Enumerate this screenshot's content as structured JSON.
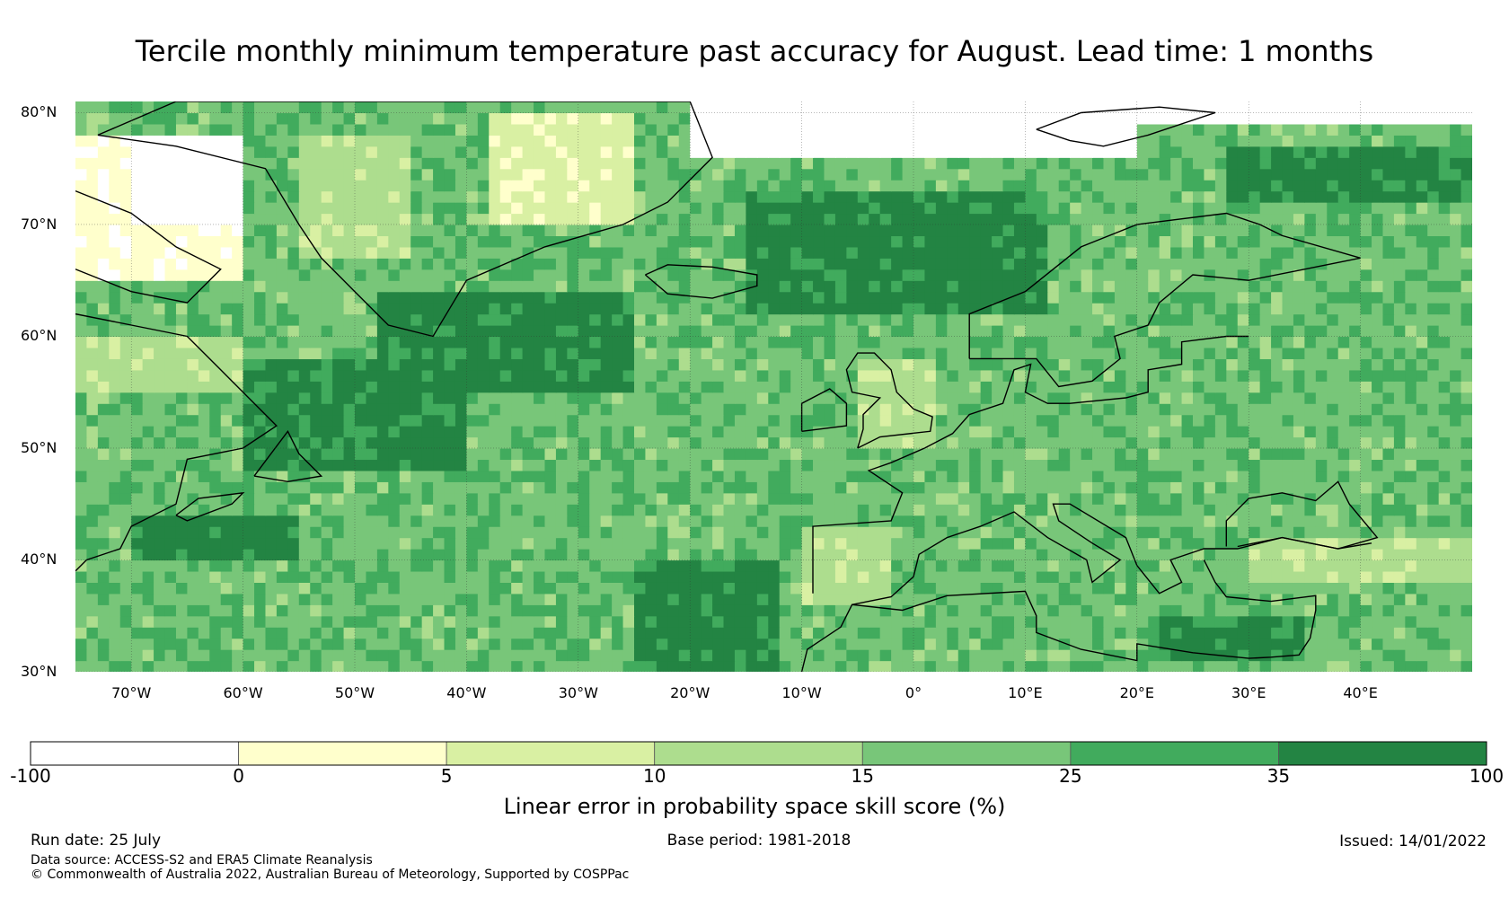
{
  "title": "Tercile monthly minimum temperature past accuracy for August. Lead time: 1 months",
  "map": {
    "lat_range": [
      30,
      81
    ],
    "lon_range": [
      -75,
      50
    ],
    "lat_ticks": [
      {
        "value": 80,
        "label": "80°N"
      },
      {
        "value": 70,
        "label": "70°N"
      },
      {
        "value": 60,
        "label": "60°N"
      },
      {
        "value": 50,
        "label": "50°N"
      },
      {
        "value": 40,
        "label": "40°N"
      },
      {
        "value": 30,
        "label": "30°N"
      }
    ],
    "lon_ticks": [
      {
        "value": -70,
        "label": "70°W"
      },
      {
        "value": -60,
        "label": "60°W"
      },
      {
        "value": -50,
        "label": "50°W"
      },
      {
        "value": -40,
        "label": "40°W"
      },
      {
        "value": -30,
        "label": "30°W"
      },
      {
        "value": -20,
        "label": "20°W"
      },
      {
        "value": -10,
        "label": "10°W"
      },
      {
        "value": 0,
        "label": "0°"
      },
      {
        "value": 10,
        "label": "10°E"
      },
      {
        "value": 20,
        "label": "20°E"
      },
      {
        "value": 30,
        "label": "30°E"
      },
      {
        "value": 40,
        "label": "40°E"
      }
    ],
    "regions": [
      {
        "lon": [
          -48,
          -25
        ],
        "lat": [
          55,
          64
        ],
        "level": 6
      },
      {
        "lon": [
          -60,
          -40
        ],
        "lat": [
          48,
          58
        ],
        "level": 6
      },
      {
        "lon": [
          -15,
          12
        ],
        "lat": [
          62,
          73
        ],
        "level": 6
      },
      {
        "lon": [
          -25,
          -12
        ],
        "lat": [
          30,
          40
        ],
        "level": 6
      },
      {
        "lon": [
          28,
          50
        ],
        "lat": [
          72,
          77
        ],
        "level": 6
      },
      {
        "lon": [
          22,
          35
        ],
        "lat": [
          31,
          35
        ],
        "level": 6
      },
      {
        "lon": [
          -70,
          -55
        ],
        "lat": [
          40,
          44
        ],
        "level": 6
      },
      {
        "lon": [
          -75,
          -60
        ],
        "lat": [
          55,
          60
        ],
        "level": 3
      },
      {
        "lon": [
          -55,
          -45
        ],
        "lat": [
          67,
          78
        ],
        "level": 3
      },
      {
        "lon": [
          -38,
          -25
        ],
        "lat": [
          70,
          80
        ],
        "level": 2
      },
      {
        "lon": [
          -5,
          2
        ],
        "lat": [
          50,
          58
        ],
        "level": 3
      },
      {
        "lon": [
          -10,
          -2
        ],
        "lat": [
          36,
          43
        ],
        "level": 3
      },
      {
        "lon": [
          -75,
          -60
        ],
        "lat": [
          65,
          78
        ],
        "level": 1
      },
      {
        "lon": [
          -70,
          -60
        ],
        "lat": [
          70,
          78
        ],
        "level": 0
      },
      {
        "lon": [
          -20,
          20
        ],
        "lat": [
          76,
          81
        ],
        "level": 0
      },
      {
        "lon": [
          20,
          50
        ],
        "lat": [
          79,
          81
        ],
        "level": 0
      },
      {
        "lon": [
          41,
          45
        ],
        "lat": [
          39,
          41
        ],
        "level": 0
      },
      {
        "lon": [
          30,
          50
        ],
        "lat": [
          38,
          42
        ],
        "level": 3
      }
    ]
  },
  "colorbar": {
    "colors": [
      "#ffffff",
      "#ffffcc",
      "#d9f0a3",
      "#addd8e",
      "#78c679",
      "#41ab5d",
      "#238443"
    ],
    "ticks": [
      "-100",
      "0",
      "5",
      "10",
      "15",
      "25",
      "35",
      "100"
    ],
    "label": "Linear error in probability space skill score (%)"
  },
  "footer": {
    "run_date": "Run date: 25 July",
    "base_period": "Base period: 1981-2018",
    "issued": "Issued: 14/01/2022",
    "data_source": "Data source: ACCESS-S2 and ERA5 Climate Reanalysis",
    "copyright": "© Commonwealth of Australia 2022, Australian Bureau of Meteorology, Supported by COSPPac"
  }
}
